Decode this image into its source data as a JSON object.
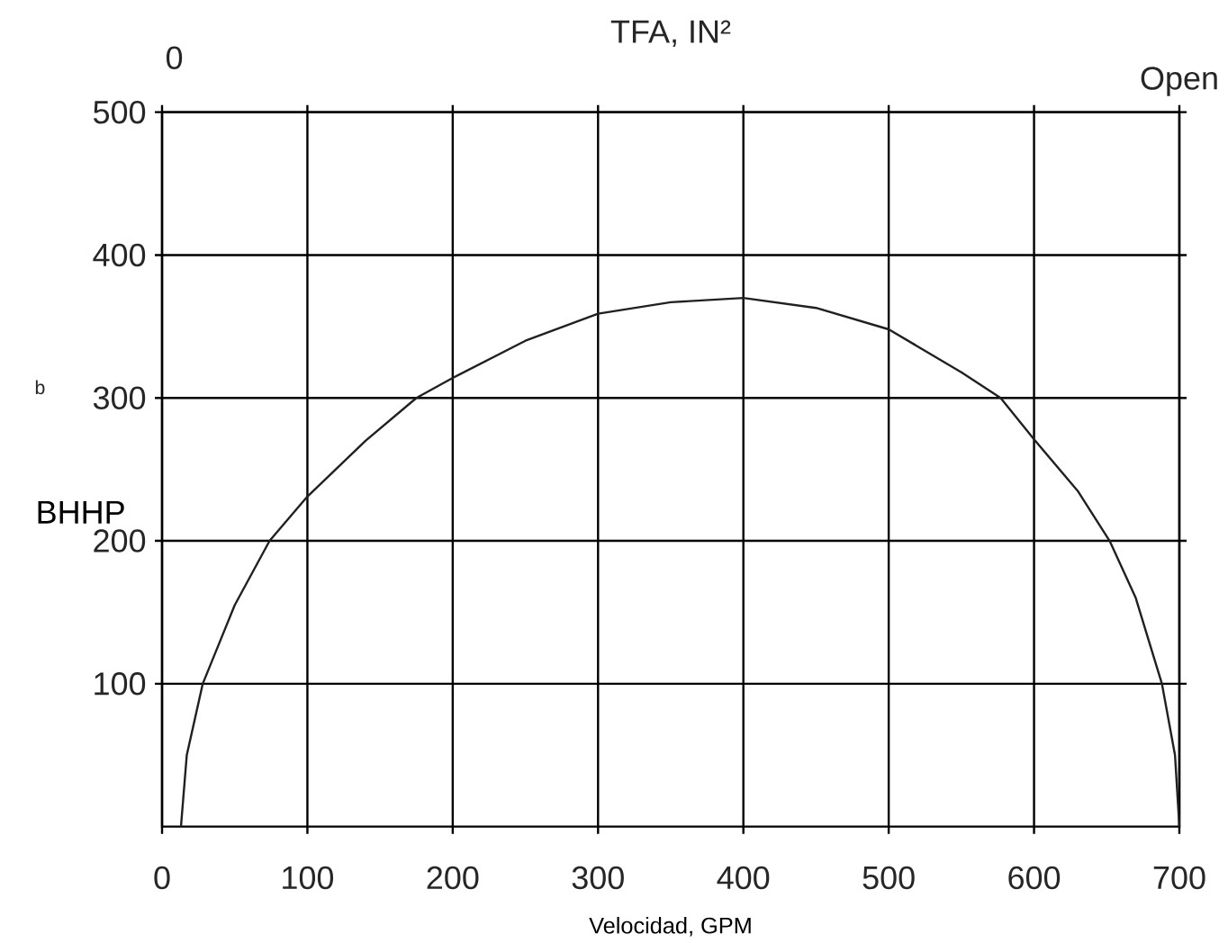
{
  "chart_data": {
    "type": "line",
    "x2label": "TFA, IN²",
    "xlabel": "Velocidad, GPM",
    "ylabel": "BHHP",
    "annotations": [
      "0",
      "Open",
      "b"
    ],
    "series": [
      {
        "color": "#231f20",
        "x": [
          13,
          17,
          28,
          50,
          74,
          100,
          140,
          175,
          200,
          250,
          300,
          350,
          400,
          450,
          500,
          550,
          577,
          600,
          630,
          652,
          670,
          688,
          697,
          700
        ],
        "values": [
          0,
          50,
          100,
          155,
          200,
          231,
          270,
          300,
          314,
          340,
          359,
          367,
          370,
          363,
          348,
          318,
          300,
          271,
          235,
          200,
          160,
          100,
          50,
          0
        ]
      }
    ],
    "xlim": [
      0,
      700
    ],
    "xticks": [
      0,
      100,
      200,
      300,
      400,
      500,
      600,
      700
    ],
    "ylim": [
      0,
      500
    ],
    "yticks": [
      100,
      200,
      300,
      400,
      500
    ],
    "grid": true,
    "marker": "none",
    "line_style": "solid"
  }
}
